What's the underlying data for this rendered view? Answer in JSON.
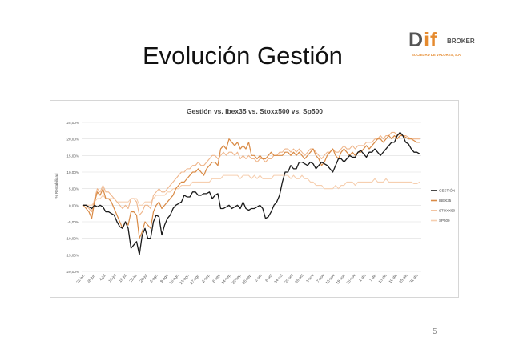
{
  "slide": {
    "title": "Evolución Gestión",
    "page_number": "5",
    "logo": {
      "main_left": "D",
      "main_accent": "if",
      "broker": "BROKER",
      "subtitle": "SOCIEDAD DE VALORES, S.A."
    }
  },
  "colors": {
    "gestion": "#1a1a1a",
    "ibex35": "#d98a45",
    "stoxx50": "#efb58a",
    "sp500": "#f6cfb0",
    "grid": "#dedede"
  },
  "chart_data": {
    "type": "line",
    "title": "Gestión vs. Ibex35 vs. Stoxx500 vs. Sp500",
    "ylabel": "% Rentabilidad",
    "ylim": [
      -20,
      25
    ],
    "y_ticks": [
      "25,00%",
      "20,00%",
      "15,00%",
      "10,00%",
      "5,00%",
      "0,00%",
      "-5,00%",
      "-10,00%",
      "-15,00%",
      "-20,00%"
    ],
    "x_ticks": [
      "22-jun",
      "28-jun",
      "4-jul",
      "10-jul",
      "16-jul",
      "22-jul",
      "28-jul",
      "3-ago",
      "9-ago",
      "15-ago",
      "21-ago",
      "27-ago",
      "2-sep",
      "8-sep",
      "14-sep",
      "20-sep",
      "26-sep",
      "2-oct",
      "8-oct",
      "14-oct",
      "20-oct",
      "26-oct",
      "1-nov",
      "7-nov",
      "13-nov",
      "19-nov",
      "25-nov",
      "1-dic",
      "7-dic",
      "13-dic",
      "19-dic",
      "25-dic",
      "31-dic"
    ],
    "grid": true,
    "legend_position": "right",
    "series": [
      {
        "name": "GESTIÓN",
        "key": "gestion",
        "values": [
          0,
          0,
          -0.5,
          -1,
          0,
          -0.5,
          0,
          -0.5,
          -2,
          -2,
          -2.5,
          -3,
          -5,
          -6.5,
          -7,
          -5,
          -7,
          -13,
          -12,
          -11,
          -15,
          -9,
          -7,
          -10,
          -10,
          -5,
          -3,
          -3.5,
          -9,
          -6,
          -4,
          -3,
          -1,
          0,
          0.5,
          1,
          3,
          2.5,
          2.5,
          4,
          4,
          3,
          3,
          3.5,
          3.5,
          4,
          2,
          3,
          3.5,
          -1,
          -1,
          -0.5,
          0,
          -1,
          -0.5,
          0,
          -1,
          1,
          -1,
          -1.5,
          -1,
          -1,
          -0.5,
          0,
          -1,
          -4,
          -3.5,
          -2,
          0,
          1,
          3,
          7,
          10,
          10,
          12,
          11,
          11,
          13,
          13,
          12.5,
          12,
          13,
          12.5,
          11,
          12,
          13,
          12.5,
          12,
          11,
          10,
          12,
          14,
          14,
          13,
          14,
          15,
          14.5,
          14.5,
          16,
          16.5,
          15.5,
          14.5,
          16,
          16,
          17,
          16,
          15,
          16,
          17,
          18,
          19,
          19,
          21,
          22,
          21,
          19,
          18.5,
          17,
          16,
          16,
          15.5
        ]
      },
      {
        "name": "IBEX35",
        "key": "ibex35",
        "values": [
          0,
          -1,
          -2,
          -4,
          1,
          4,
          3,
          5,
          2,
          2,
          1,
          -1,
          -3,
          -5,
          -7,
          -5,
          -6,
          -2,
          -2,
          -3,
          -10,
          -8,
          -5,
          -6,
          -7,
          -2,
          0,
          1,
          -1,
          0,
          1,
          2,
          3,
          5,
          6,
          7,
          7,
          8,
          9,
          10,
          10,
          11,
          10,
          9,
          11,
          12,
          13,
          13,
          12,
          17,
          18,
          17,
          20,
          19,
          18,
          19,
          17,
          18,
          17,
          19,
          15,
          15,
          14,
          15,
          14,
          14,
          15,
          16,
          15,
          15,
          15,
          15,
          16,
          16,
          15,
          16,
          15,
          16,
          15,
          14,
          15,
          16,
          17,
          15,
          14,
          12,
          13,
          15,
          16,
          17,
          15,
          14,
          16,
          17,
          16,
          15,
          16,
          15,
          16,
          16,
          17,
          18,
          17,
          18,
          19,
          20,
          20,
          19,
          20,
          21,
          20,
          21,
          20,
          21,
          21,
          20.5,
          20,
          20,
          19.5,
          19,
          19
        ]
      },
      {
        "name": "STOXX50",
        "key": "stoxx50",
        "values": [
          0,
          0,
          -1,
          -2,
          2,
          5,
          4,
          6,
          4,
          4,
          3,
          2,
          1,
          0,
          -1,
          0,
          -1,
          2,
          2,
          1,
          -3,
          -2,
          0,
          0,
          -1,
          3,
          4,
          5,
          4,
          4,
          5,
          6,
          7,
          8,
          9,
          10,
          10,
          11,
          11,
          12,
          12,
          13,
          12,
          12,
          13,
          14,
          15,
          15,
          14,
          15,
          16,
          15,
          16,
          16,
          15,
          16,
          14,
          15,
          14,
          15,
          14,
          14,
          13,
          14,
          14,
          13,
          14,
          14,
          15,
          15,
          16,
          16,
          17,
          17,
          16,
          17,
          16,
          17,
          16,
          15,
          16,
          17,
          17,
          16,
          15,
          14,
          15,
          16,
          16,
          17,
          16,
          16,
          17,
          18,
          17,
          17,
          18,
          17,
          18,
          18,
          18,
          19,
          19,
          19,
          20,
          20,
          21,
          20,
          21,
          21,
          22,
          22,
          21,
          21.5,
          21,
          21,
          20.5,
          20,
          20,
          20,
          20
        ]
      },
      {
        "name": "SP500",
        "key": "sp500",
        "values": [
          0,
          0,
          0,
          0,
          1,
          2,
          2,
          3,
          2,
          2,
          2,
          2,
          1,
          1,
          1,
          1,
          1,
          2,
          2,
          2,
          0,
          0,
          1,
          1,
          1,
          2,
          3,
          3,
          3,
          3,
          4,
          4,
          5,
          5,
          5,
          6,
          6,
          6,
          6,
          7,
          7,
          7,
          7,
          7,
          7,
          7,
          8,
          8,
          8,
          8,
          9,
          9,
          9,
          9,
          9,
          9,
          8,
          9,
          9,
          9,
          8,
          9,
          8,
          9,
          8,
          8,
          8,
          8,
          9,
          9,
          9,
          9,
          9,
          9,
          8,
          9,
          8,
          8,
          9,
          8,
          8,
          7,
          7,
          6,
          6,
          6,
          5,
          5,
          5,
          5,
          6,
          5,
          6,
          6,
          7,
          7,
          7,
          6,
          7,
          7,
          7,
          7,
          7,
          7,
          8,
          7,
          7,
          7,
          8,
          7,
          7,
          7,
          7,
          7,
          7,
          7,
          7,
          7,
          6.5,
          6.5,
          7
        ]
      }
    ]
  }
}
